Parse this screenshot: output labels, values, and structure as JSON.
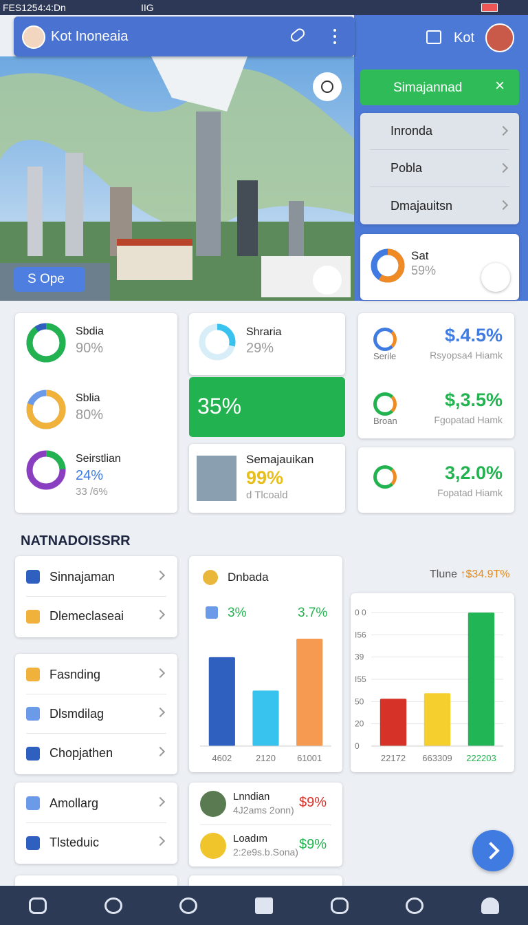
{
  "status_bar": {
    "left": "FES1254:4:Dn",
    "middle": "IIG"
  },
  "header": {
    "title": "Kot Inoneaia",
    "right_title": "Kot"
  },
  "map": {
    "button": "S Ope"
  },
  "menu": {
    "top": "Simajannad",
    "items": [
      "Inronda",
      "Pobla",
      "Dmajauitsn"
    ]
  },
  "stat_card": {
    "title": "Sat",
    "value": 59,
    "value_label": "59%",
    "color": "#f08a24",
    "track_color": "#3f7be0"
  },
  "donut_cards": [
    {
      "title": "Sbdia",
      "value": 90,
      "value_label": "90%",
      "color": "#22b24f",
      "track_color": "#2f5fbf"
    },
    {
      "title": "Sblia",
      "value": 80,
      "value_label": "80%",
      "color": "#f0b23a",
      "track_color": "#6b9be8"
    },
    {
      "title": "Seirstlian",
      "value": 24,
      "value_label": "24%",
      "sub": "33 /6%",
      "color": "#22b24f",
      "track_color": "#8a3fc0"
    }
  ],
  "middle": {
    "donut": {
      "title": "Shraria",
      "value": 29,
      "value_label": "29%",
      "color": "#38c3ee",
      "track_color": "#d7eef8"
    },
    "highlight": "35%",
    "item": {
      "title": "Semajauikan",
      "value": "99%",
      "sub": "d Tlcoald"
    }
  },
  "right_stats": [
    {
      "icon_label": "Serile",
      "value": "$.4.5%",
      "sub": "Rsyopsa4 Hiamk",
      "color": "#3f7be0"
    },
    {
      "icon_label": "Broan",
      "value": "$,3.5%",
      "sub": "Fgopatad Hamk",
      "color": "#22b24f"
    },
    {
      "value": "3,2.0%",
      "sub": "Fopatad Hiamk",
      "color": "#22b24f"
    }
  ],
  "section_title": "NATNADOISSRR",
  "list_groups": [
    [
      "Sinnajaman",
      "Dlemeclaseai"
    ],
    [
      "Fasnding",
      "Dlsmdilag",
      "Chopjathen"
    ],
    [
      "Amollarg",
      "Tlsteduic"
    ]
  ],
  "bar_card1": {
    "title": "Dnbada",
    "check_label": "3%",
    "value_label": "3.7%",
    "categories": [
      "4602",
      "2120",
      "61001"
    ],
    "values": [
      125,
      78,
      151
    ],
    "colors": [
      "#2f5fbf",
      "#38c3ee",
      "#f59a50"
    ]
  },
  "bar_card2": {
    "title": "Tlune",
    "value_label": "↑$34.9T%",
    "y_labels": [
      "0 0",
      "I56",
      "39",
      "I55",
      "50",
      "20",
      "0"
    ],
    "categories": [
      "22172",
      "663309",
      "222203"
    ],
    "values": [
      61,
      68,
      172
    ],
    "colors": [
      "#d63228",
      "#f5cf2e",
      "#22b556"
    ]
  },
  "contacts": [
    {
      "name": "Lnndian",
      "sub": "4J2ams 2onn)",
      "value": "$9%"
    },
    {
      "name": "Loadım",
      "sub": "2:2e9s.b.Sona)",
      "value": "$9%"
    }
  ]
}
